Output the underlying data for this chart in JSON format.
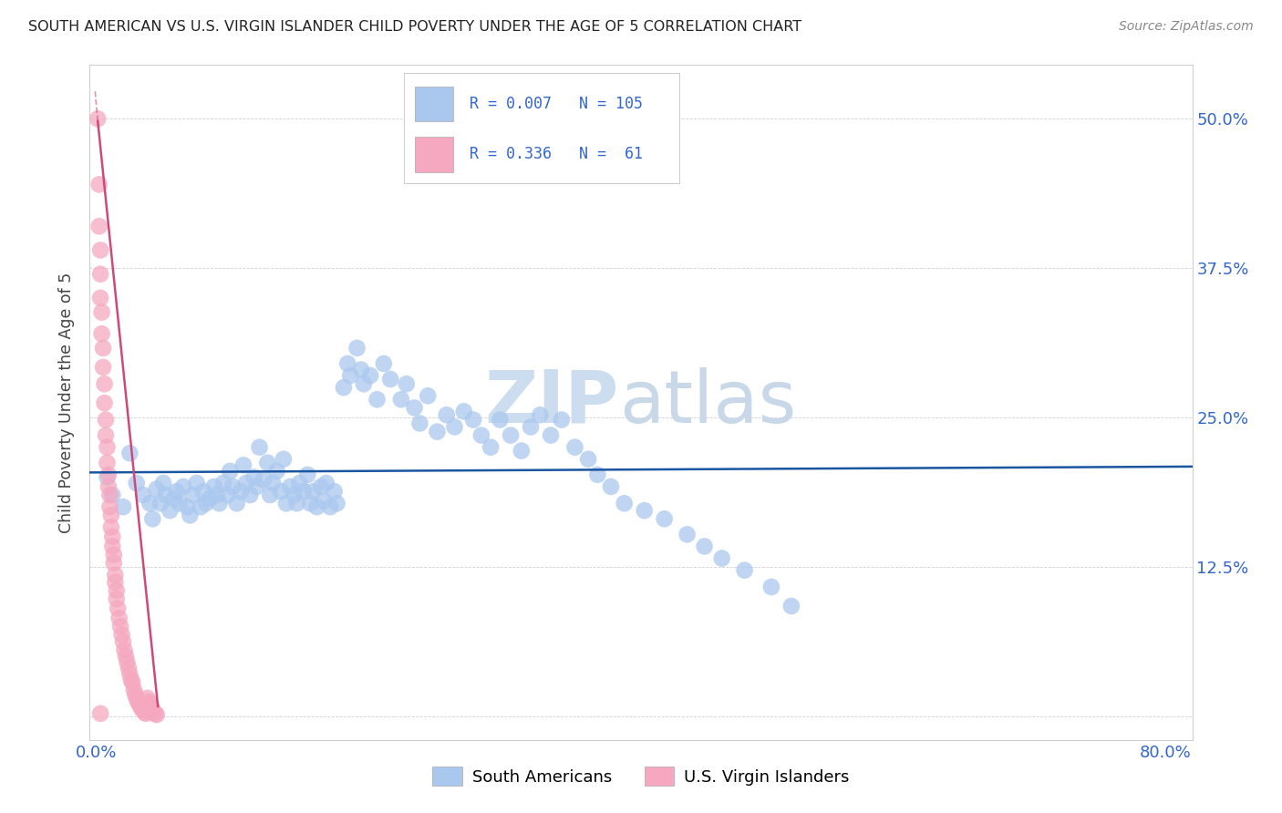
{
  "title": "SOUTH AMERICAN VS U.S. VIRGIN ISLANDER CHILD POVERTY UNDER THE AGE OF 5 CORRELATION CHART",
  "source": "Source: ZipAtlas.com",
  "ylabel": "Child Poverty Under the Age of 5",
  "xlim": [
    -0.005,
    0.82
  ],
  "ylim": [
    -0.02,
    0.545
  ],
  "xtick_positions": [
    0.0,
    0.1,
    0.2,
    0.3,
    0.4,
    0.5,
    0.6,
    0.7,
    0.8
  ],
  "xticklabels": [
    "0.0%",
    "",
    "",
    "",
    "",
    "",
    "",
    "",
    "80.0%"
  ],
  "ytick_positions": [
    0.0,
    0.125,
    0.25,
    0.375,
    0.5
  ],
  "yticklabels_right": [
    "",
    "12.5%",
    "25.0%",
    "37.5%",
    "50.0%"
  ],
  "legend_blue_label": "South Americans",
  "legend_pink_label": "U.S. Virgin Islanders",
  "r_blue": "0.007",
  "n_blue": "105",
  "r_pink": "0.336",
  "n_pink": " 61",
  "blue_color": "#aac8ee",
  "blue_line_color": "#1a55a0",
  "pink_color": "#f5a8c0",
  "pink_line_color": "#d04878",
  "watermark_zip": "ZIP",
  "watermark_atlas": "atlas",
  "blue_scatter_x": [
    0.008,
    0.012,
    0.02,
    0.025,
    0.03,
    0.035,
    0.04,
    0.042,
    0.045,
    0.048,
    0.05,
    0.052,
    0.055,
    0.058,
    0.06,
    0.062,
    0.065,
    0.068,
    0.07,
    0.072,
    0.075,
    0.078,
    0.08,
    0.082,
    0.085,
    0.088,
    0.09,
    0.092,
    0.095,
    0.098,
    0.1,
    0.102,
    0.105,
    0.108,
    0.11,
    0.112,
    0.115,
    0.118,
    0.12,
    0.122,
    0.125,
    0.128,
    0.13,
    0.132,
    0.135,
    0.138,
    0.14,
    0.142,
    0.145,
    0.148,
    0.15,
    0.152,
    0.155,
    0.158,
    0.16,
    0.162,
    0.165,
    0.168,
    0.17,
    0.172,
    0.175,
    0.178,
    0.18,
    0.185,
    0.188,
    0.19,
    0.195,
    0.198,
    0.2,
    0.205,
    0.21,
    0.215,
    0.22,
    0.228,
    0.232,
    0.238,
    0.242,
    0.248,
    0.255,
    0.262,
    0.268,
    0.275,
    0.282,
    0.288,
    0.295,
    0.302,
    0.31,
    0.318,
    0.325,
    0.332,
    0.34,
    0.348,
    0.358,
    0.368,
    0.375,
    0.385,
    0.395,
    0.41,
    0.425,
    0.442,
    0.455,
    0.468,
    0.485,
    0.505,
    0.52
  ],
  "blue_scatter_y": [
    0.2,
    0.185,
    0.175,
    0.22,
    0.195,
    0.185,
    0.178,
    0.165,
    0.19,
    0.178,
    0.195,
    0.185,
    0.172,
    0.182,
    0.188,
    0.178,
    0.192,
    0.175,
    0.168,
    0.185,
    0.195,
    0.175,
    0.188,
    0.178,
    0.182,
    0.192,
    0.185,
    0.178,
    0.195,
    0.185,
    0.205,
    0.192,
    0.178,
    0.188,
    0.21,
    0.195,
    0.185,
    0.2,
    0.192,
    0.225,
    0.198,
    0.212,
    0.185,
    0.195,
    0.205,
    0.188,
    0.215,
    0.178,
    0.192,
    0.185,
    0.178,
    0.195,
    0.188,
    0.202,
    0.178,
    0.188,
    0.175,
    0.192,
    0.18,
    0.195,
    0.175,
    0.188,
    0.178,
    0.275,
    0.295,
    0.285,
    0.308,
    0.29,
    0.278,
    0.285,
    0.265,
    0.295,
    0.282,
    0.265,
    0.278,
    0.258,
    0.245,
    0.268,
    0.238,
    0.252,
    0.242,
    0.255,
    0.248,
    0.235,
    0.225,
    0.248,
    0.235,
    0.222,
    0.242,
    0.252,
    0.235,
    0.248,
    0.225,
    0.215,
    0.202,
    0.192,
    0.178,
    0.172,
    0.165,
    0.152,
    0.142,
    0.132,
    0.122,
    0.108,
    0.092
  ],
  "pink_scatter_x": [
    0.001,
    0.002,
    0.002,
    0.003,
    0.003,
    0.003,
    0.004,
    0.004,
    0.005,
    0.005,
    0.006,
    0.006,
    0.007,
    0.007,
    0.008,
    0.008,
    0.009,
    0.009,
    0.01,
    0.01,
    0.011,
    0.011,
    0.012,
    0.012,
    0.013,
    0.013,
    0.014,
    0.014,
    0.015,
    0.015,
    0.016,
    0.017,
    0.018,
    0.019,
    0.02,
    0.021,
    0.022,
    0.023,
    0.024,
    0.025,
    0.026,
    0.027,
    0.028,
    0.029,
    0.03,
    0.031,
    0.032,
    0.033,
    0.034,
    0.035,
    0.036,
    0.037,
    0.038,
    0.039,
    0.04,
    0.041,
    0.042,
    0.043,
    0.044,
    0.045,
    0.003
  ],
  "pink_scatter_y": [
    0.5,
    0.445,
    0.41,
    0.39,
    0.37,
    0.35,
    0.338,
    0.32,
    0.308,
    0.292,
    0.278,
    0.262,
    0.248,
    0.235,
    0.225,
    0.212,
    0.202,
    0.192,
    0.185,
    0.175,
    0.168,
    0.158,
    0.15,
    0.142,
    0.135,
    0.128,
    0.118,
    0.112,
    0.105,
    0.098,
    0.09,
    0.082,
    0.075,
    0.068,
    0.062,
    0.055,
    0.05,
    0.045,
    0.04,
    0.035,
    0.03,
    0.028,
    0.022,
    0.018,
    0.015,
    0.012,
    0.01,
    0.008,
    0.006,
    0.005,
    0.003,
    0.002,
    0.015,
    0.012,
    0.01,
    0.008,
    0.005,
    0.003,
    0.002,
    0.001,
    0.002
  ],
  "pink_line_x0": 0.001,
  "pink_line_x1": 0.046,
  "pink_line_y0": 0.498,
  "pink_line_y1": 0.008
}
